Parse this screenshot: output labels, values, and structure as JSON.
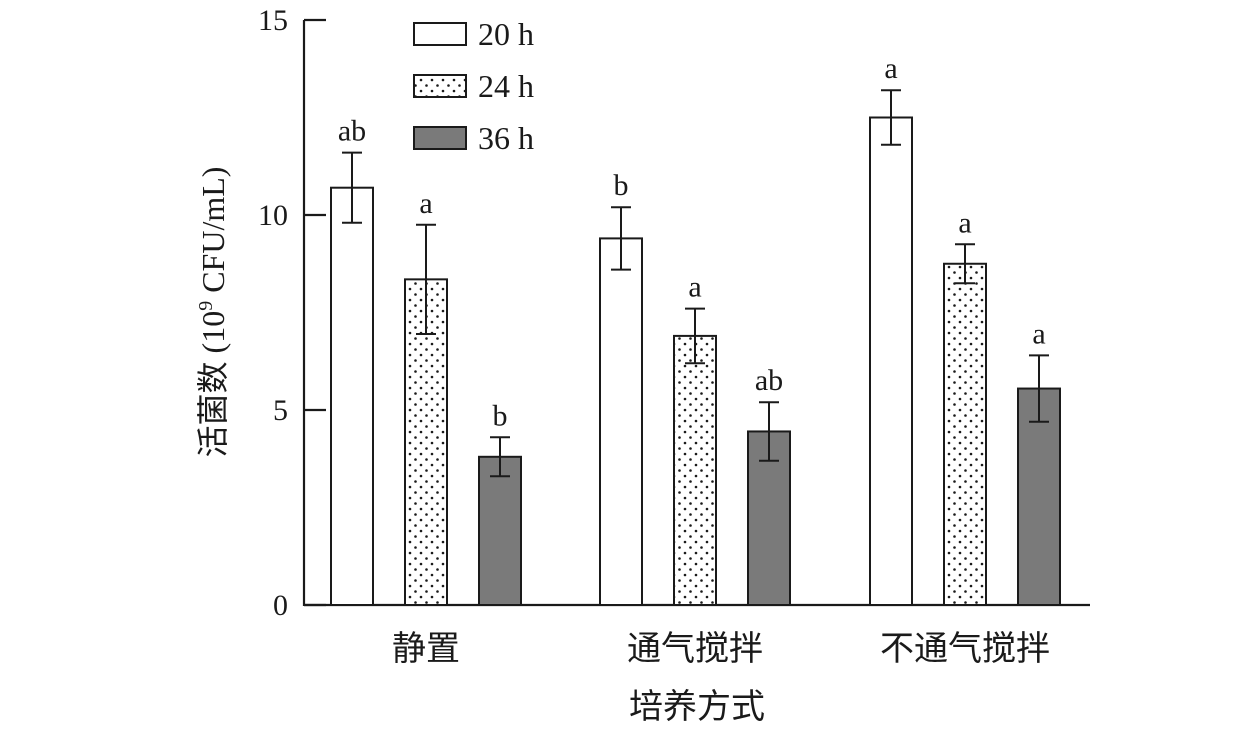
{
  "chart_data": {
    "type": "bar",
    "xlabel": "培养方式",
    "ylabel_main": "活菌数 (10",
    "ylabel_sup": "9",
    "ylabel_tail": " CFU/mL)",
    "ylim": [
      0,
      15
    ],
    "yticks": [
      "0",
      "5",
      "10",
      "15"
    ],
    "categories": [
      "静置",
      "通气搅拌",
      "不通气搅拌"
    ],
    "series": [
      {
        "name": "20 h",
        "pattern": "white",
        "values": [
          10.7,
          9.4,
          12.5
        ],
        "errors": [
          0.9,
          0.8,
          0.7
        ],
        "sig_labels": [
          "ab",
          "b",
          "a"
        ]
      },
      {
        "name": "24 h",
        "pattern": "dots",
        "values": [
          8.35,
          6.9,
          8.75
        ],
        "errors": [
          1.4,
          0.7,
          0.5
        ],
        "sig_labels": [
          "a",
          "a",
          "a"
        ]
      },
      {
        "name": "36 h",
        "pattern": "gray",
        "values": [
          3.8,
          4.45,
          5.55
        ],
        "errors": [
          0.5,
          0.75,
          0.85
        ],
        "sig_labels": [
          "b",
          "ab",
          "a"
        ]
      }
    ],
    "grid": false,
    "legend_position": "top-left",
    "colors": {
      "axis": "#1a1a1a",
      "gray_fill": "#7a7a7a",
      "white_fill": "#ffffff"
    }
  }
}
